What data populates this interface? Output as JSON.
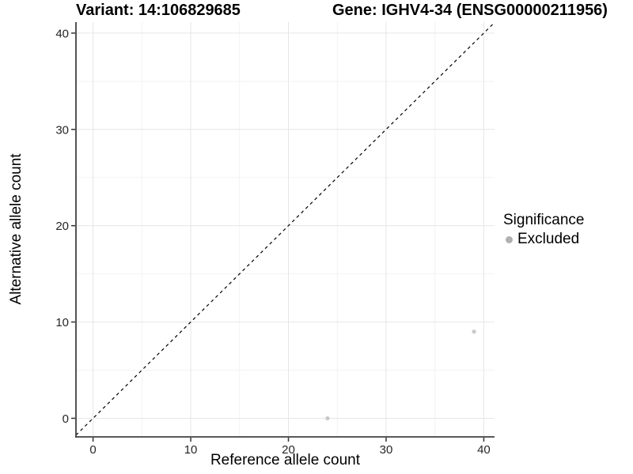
{
  "chart_data": {
    "type": "scatter",
    "title_left": "Variant: 14:106829685",
    "title_right": "Gene: IGHV4-34 (ENSG00000211956)",
    "xlabel": "Reference allele count",
    "ylabel": "Alternative allele count",
    "x_ticks": [
      0,
      10,
      20,
      30,
      40
    ],
    "y_ticks": [
      0,
      10,
      20,
      30,
      40
    ],
    "xlim": [
      -1.75,
      41.1
    ],
    "ylim": [
      -1.93,
      41.14
    ],
    "grid": {
      "major_every": 10,
      "minor_every": 5,
      "major_color": "#e6e6e6",
      "minor_color": "#f2f2f2"
    },
    "identity_line": {
      "equation": "y = x",
      "style": "dashed",
      "color": "#000000"
    },
    "series": [
      {
        "name": "Excluded",
        "color": "#c9c9c9",
        "points": [
          {
            "x": 24,
            "y": 0
          },
          {
            "x": 39,
            "y": 9
          }
        ]
      }
    ],
    "legend": {
      "position": "right",
      "title": "Significance",
      "items": [
        {
          "label": "Excluded",
          "color": "#b0b0b0"
        }
      ]
    },
    "style": {
      "axis_line_color": "#404040",
      "tick_color": "#333333",
      "tick_label_color": "#262626",
      "background": "#ffffff"
    }
  }
}
